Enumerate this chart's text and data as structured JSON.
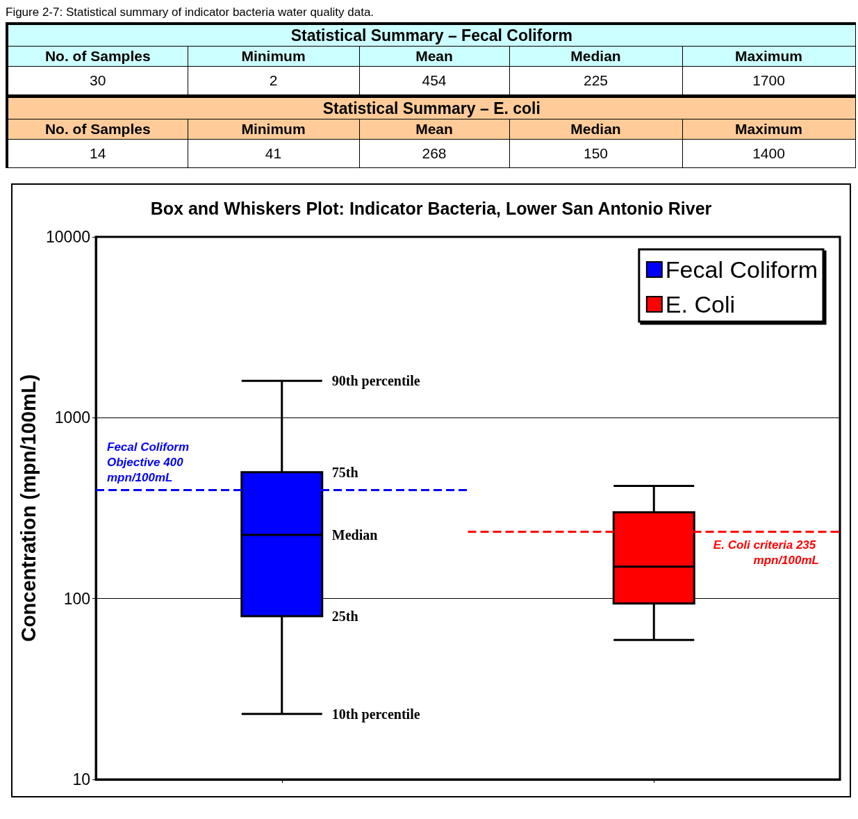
{
  "chart_data": [
    {
      "type": "other",
      "title": "Statistical Summary – Fecal Coliform",
      "annotations": [
        "Figure 2-7: Statistical summary of indicator bacteria water quality data."
      ],
      "categories": [
        "No. of Samples",
        "Minimum",
        "Mean",
        "Median",
        "Maximum"
      ],
      "values": [
        30,
        2,
        454,
        225,
        1700
      ],
      "data_labels": true
    },
    {
      "type": "other",
      "title": "Statistical Summary – E. coli",
      "categories": [
        "No. of Samples",
        "Minimum",
        "Mean",
        "Median",
        "Maximum"
      ],
      "values": [
        14,
        41,
        268,
        150,
        1400
      ],
      "data_labels": true
    },
    {
      "type": "box",
      "title": "Box and Whiskers Plot: Indicator Bacteria, Lower San Antonio River",
      "ylabel": "Concentration (mpn/100mL)",
      "categories": [
        null,
        null
      ],
      "log": true,
      "ylim": [
        10,
        10000
      ],
      "yticks": [
        10,
        100,
        1000,
        10000
      ],
      "grid": "y",
      "legend": "top right",
      "series": [
        {
          "name": "Fecal Coliform",
          "color": "#0000ff",
          "boxes": [
            {
              "low": 23,
              "q1": 80,
              "median": 225,
              "q3": 500,
              "high": 1600
            },
            null
          ]
        },
        {
          "name": "E. Coli",
          "color": "#ff0000",
          "boxes": [
            null,
            {
              "low": 59,
              "q1": 94,
              "median": 150,
              "q3": 300,
              "high": 420
            }
          ]
        }
      ],
      "ref_lines": [
        {
          "axis": "y",
          "value": 400,
          "label": "Fecal Coliform Objective 400 mpn/100mL",
          "color": "#0000ff",
          "line_style": "dashed"
        },
        {
          "axis": "y",
          "value": 235,
          "label": "E. Coli criteria 235 mpn/100mL",
          "color": "#ff0000",
          "line_style": "dashed"
        }
      ],
      "annotations": [
        "90th percentile",
        "75th",
        "Median",
        "25th",
        "10th percentile"
      ]
    }
  ]
}
